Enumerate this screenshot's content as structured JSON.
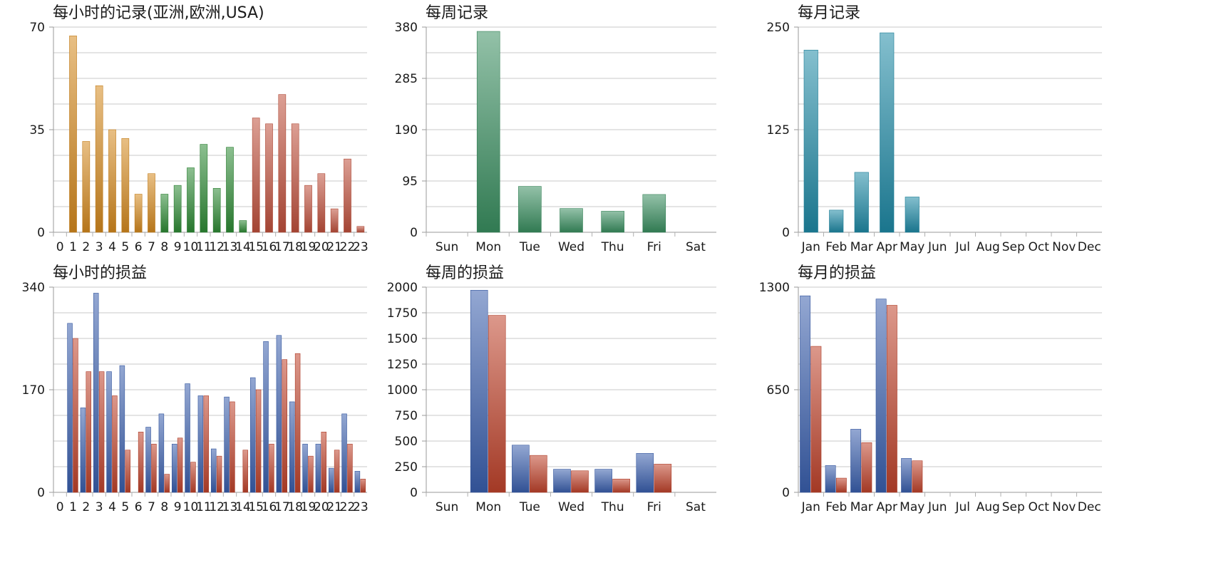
{
  "chart_data": [
    {
      "id": "hourly-records",
      "type": "bar",
      "title": "每小时的记录(亚洲,欧洲,USA)",
      "categories": [
        "0",
        "1",
        "2",
        "3",
        "4",
        "5",
        "6",
        "7",
        "8",
        "9",
        "10",
        "11",
        "12",
        "13",
        "14",
        "15",
        "16",
        "17",
        "18",
        "19",
        "20",
        "21",
        "22",
        "23"
      ],
      "ylim": [
        0,
        70
      ],
      "yticks": [
        0,
        35,
        70
      ],
      "grid": true,
      "series": [
        {
          "values": [
            0,
            67,
            31,
            50,
            35,
            32,
            13,
            20,
            13,
            16,
            22,
            30,
            15,
            29,
            4,
            39,
            37,
            47,
            37,
            16,
            20,
            8,
            25,
            2
          ]
        }
      ],
      "bar_colors": [
        "#d58a1f",
        "#d58a1f",
        "#d58a1f",
        "#d58a1f",
        "#d58a1f",
        "#d58a1f",
        "#d58a1f",
        "#d58a1f",
        "#2e8b35",
        "#2e8b35",
        "#2e8b35",
        "#2e8b35",
        "#2e8b35",
        "#2e8b35",
        "#2e8b35",
        "#c0503c",
        "#c0503c",
        "#c0503c",
        "#c0503c",
        "#c0503c",
        "#c0503c",
        "#c0503c",
        "#c0503c",
        "#c0503c"
      ]
    },
    {
      "id": "weekly-records",
      "type": "bar",
      "title": "每周记录",
      "categories": [
        "Sun",
        "Mon",
        "Tue",
        "Wed",
        "Thu",
        "Fri",
        "Sat"
      ],
      "ylim": [
        0,
        380
      ],
      "yticks": [
        0,
        95,
        190,
        285,
        380
      ],
      "grid": true,
      "series": [
        {
          "values": [
            0,
            372,
            85,
            44,
            39,
            70,
            0
          ]
        }
      ],
      "bar_colors": [
        "#3a8f60"
      ]
    },
    {
      "id": "monthly-records",
      "type": "bar",
      "title": "每月记录",
      "categories": [
        "Jan",
        "Feb",
        "Mar",
        "Apr",
        "May",
        "Jun",
        "Jul",
        "Aug",
        "Sep",
        "Oct",
        "Nov",
        "Dec"
      ],
      "ylim": [
        0,
        250
      ],
      "yticks": [
        0,
        125,
        250
      ],
      "grid": true,
      "series": [
        {
          "values": [
            222,
            27,
            73,
            243,
            43,
            0,
            0,
            0,
            0,
            0,
            0,
            0
          ]
        }
      ],
      "bar_colors": [
        "#1f8aa6"
      ]
    },
    {
      "id": "hourly-pnl",
      "type": "bar",
      "title": "每小时的损益",
      "categories": [
        "0",
        "1",
        "2",
        "3",
        "4",
        "5",
        "6",
        "7",
        "8",
        "9",
        "10",
        "11",
        "12",
        "13",
        "14",
        "15",
        "16",
        "17",
        "18",
        "19",
        "20",
        "21",
        "22",
        "23"
      ],
      "ylim": [
        0,
        340
      ],
      "yticks": [
        0,
        170,
        340
      ],
      "grid": true,
      "series": [
        {
          "values": [
            0,
            280,
            140,
            330,
            200,
            210,
            0,
            108,
            130,
            80,
            180,
            160,
            72,
            158,
            0,
            190,
            250,
            260,
            150,
            80,
            80,
            40,
            130,
            35
          ]
        },
        {
          "values": [
            0,
            255,
            200,
            200,
            160,
            70,
            100,
            80,
            30,
            90,
            50,
            160,
            60,
            150,
            70,
            170,
            80,
            220,
            230,
            60,
            100,
            70,
            80,
            22
          ]
        }
      ],
      "series_colors": [
        "#3a5fae",
        "#c0432c"
      ]
    },
    {
      "id": "weekly-pnl",
      "type": "bar",
      "title": "每周的损益",
      "categories": [
        "Sun",
        "Mon",
        "Tue",
        "Wed",
        "Thu",
        "Fri",
        "Sat"
      ],
      "ylim": [
        0,
        2000
      ],
      "yticks": [
        0,
        250,
        500,
        750,
        1000,
        1250,
        1500,
        1750,
        2000
      ],
      "grid": true,
      "series": [
        {
          "values": [
            0,
            1970,
            460,
            225,
            225,
            380,
            0
          ]
        },
        {
          "values": [
            0,
            1725,
            360,
            210,
            130,
            275,
            0
          ]
        }
      ],
      "series_colors": [
        "#3a5fae",
        "#c0432c"
      ]
    },
    {
      "id": "monthly-pnl",
      "type": "bar",
      "title": "每月的损益",
      "categories": [
        "Jan",
        "Feb",
        "Mar",
        "Apr",
        "May",
        "Jun",
        "Jul",
        "Aug",
        "Sep",
        "Oct",
        "Nov",
        "Dec"
      ],
      "ylim": [
        0,
        1300
      ],
      "yticks": [
        0,
        650,
        1300
      ],
      "grid": true,
      "series": [
        {
          "values": [
            1245,
            170,
            400,
            1225,
            215,
            0,
            0,
            0,
            0,
            0,
            0,
            0
          ]
        },
        {
          "values": [
            925,
            90,
            315,
            1185,
            200,
            0,
            0,
            0,
            0,
            0,
            0,
            0
          ]
        }
      ],
      "series_colors": [
        "#3a5fae",
        "#c0432c"
      ]
    }
  ]
}
